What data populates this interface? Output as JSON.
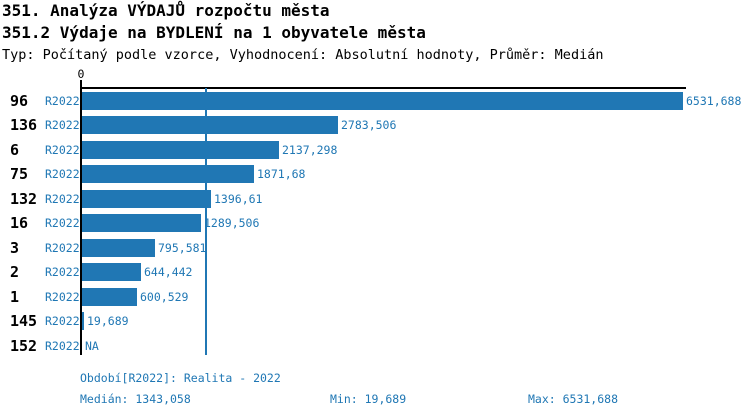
{
  "header": {
    "title1": "351. Analýza VÝDAJŮ rozpočtu města",
    "title2": "351.2 Výdaje na BYDLENÍ na 1 obyvatele města",
    "subtitle": "Typ: Počítaný podle vzorce, Vyhodnocení: Absolutní hodnoty, Průměr: Medián"
  },
  "chart_data": {
    "type": "bar",
    "orientation": "horizontal",
    "title": "351.2 Výdaje na BYDLENÍ na 1 obyvatele města",
    "zero_label": "0",
    "categories": [
      "96",
      "136",
      "6",
      "75",
      "132",
      "16",
      "3",
      "2",
      "1",
      "145",
      "152"
    ],
    "period_label": "R2022",
    "values": [
      6531.688,
      2783.506,
      2137.298,
      1871.68,
      1396.61,
      1289.506,
      795.581,
      644.442,
      600.529,
      19.689,
      null
    ],
    "value_labels": [
      "6531,688",
      "2783,506",
      "2137,298",
      "1871,68",
      "1396,61",
      "1289,506",
      "795,581",
      "644,442",
      "600,529",
      "19,689",
      "NA"
    ],
    "xlim": [
      0,
      6531.688
    ],
    "median": 1343.058,
    "min": 19.689,
    "max": 6531.688,
    "grid": false,
    "legend": "none",
    "colors": {
      "bar": "#2077b4",
      "blue_text": "#1f77b4",
      "axis": "#000000"
    }
  },
  "footer": {
    "period": "Období[R2022]: Realita - 2022",
    "median": "Medián: 1343,058",
    "min": "Min: 19,689",
    "max": "Max: 6531,688"
  }
}
